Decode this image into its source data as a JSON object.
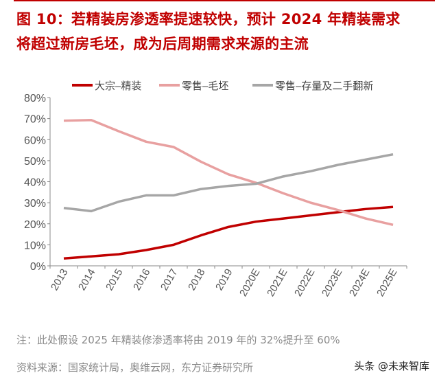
{
  "title_line1": "图 10：若精装房渗透率提速较快，预计 2024 年精装需求",
  "title_line2": "将超过新房毛坯，成为后周期需求来源的主流",
  "note": "注：此处假设 2025 年精装修渗透率将由 2019 年的 32%提升至 60%",
  "source": "资料来源：国家统计局，奥维云网，东方证券研究所",
  "watermark": "头条 @未来智库",
  "chart_data": {
    "type": "line",
    "categories": [
      "2013",
      "2014",
      "2015",
      "2016",
      "2017",
      "2018",
      "2019",
      "2020E",
      "2021E",
      "2022E",
      "2023E",
      "2024E",
      "2025E"
    ],
    "ylim": [
      0,
      80
    ],
    "yticks": [
      "0%",
      "10%",
      "20%",
      "30%",
      "40%",
      "50%",
      "60%",
      "70%",
      "80%"
    ],
    "legend_position": "top",
    "grid": false,
    "series": [
      {
        "name": "大宗–精装",
        "color": "#c00000",
        "values": [
          3.5,
          4.5,
          5.5,
          7.5,
          10,
          14.5,
          18.5,
          21,
          22.5,
          24,
          25.5,
          27,
          28
        ]
      },
      {
        "name": "零售–毛坯",
        "color": "#e8a0a0",
        "values": [
          69,
          69.3,
          64,
          59,
          56.5,
          49.5,
          43.5,
          39.5,
          34.5,
          30,
          26.5,
          22.5,
          19.5
        ]
      },
      {
        "name": "零售–存量及二手翻新",
        "color": "#a6a6a6",
        "values": [
          27.5,
          26,
          30.5,
          33.5,
          33.5,
          36.5,
          38,
          39,
          42.5,
          45,
          48,
          50.5,
          53
        ]
      }
    ]
  }
}
